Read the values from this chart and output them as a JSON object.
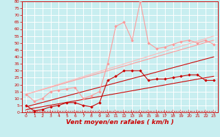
{
  "bg_color": "#c8eef0",
  "grid_color": "#ffffff",
  "xlabel": "Vent moyen/en rafales ( km/h )",
  "xlabel_color": "#cc0000",
  "xlabel_fontsize": 6.5,
  "x_tick_color": "#cc0000",
  "y_tick_color": "#cc0000",
  "xlim": [
    -0.5,
    23.5
  ],
  "ylim": [
    0,
    80
  ],
  "yticks": [
    0,
    5,
    10,
    15,
    20,
    25,
    30,
    35,
    40,
    45,
    50,
    55,
    60,
    65,
    70,
    75,
    80
  ],
  "xticks": [
    0,
    1,
    2,
    3,
    4,
    5,
    6,
    7,
    8,
    9,
    10,
    11,
    12,
    13,
    14,
    15,
    16,
    17,
    18,
    19,
    20,
    21,
    22,
    23
  ],
  "series": [
    {
      "x": [
        0,
        1,
        2,
        3,
        4,
        5,
        6,
        7,
        8,
        9,
        10,
        11,
        12,
        13,
        14,
        15,
        16,
        17,
        18,
        19,
        20,
        21,
        22,
        23
      ],
      "y": [
        5,
        1,
        2,
        4,
        5,
        7,
        7,
        5,
        4,
        7,
        23,
        26,
        30,
        30,
        30,
        23,
        24,
        24,
        25,
        26,
        27,
        27,
        23,
        23
      ],
      "color": "#cc0000",
      "linewidth": 0.8,
      "marker": "D",
      "markersize": 1.8,
      "zorder": 5
    },
    {
      "x": [
        0,
        1,
        2,
        3,
        4,
        5,
        6,
        7,
        8,
        9,
        10,
        11,
        12,
        13,
        14,
        15,
        16,
        17,
        18,
        19,
        20,
        21,
        22,
        23
      ],
      "y": [
        13,
        8,
        10,
        15,
        16,
        17,
        18,
        10,
        12,
        15,
        35,
        62,
        65,
        52,
        80,
        50,
        46,
        47,
        49,
        51,
        52,
        50,
        52,
        49
      ],
      "color": "#ff9999",
      "linewidth": 0.8,
      "marker": "D",
      "markersize": 1.8,
      "zorder": 4
    },
    {
      "x": [
        0,
        23
      ],
      "y": [
        4,
        40
      ],
      "color": "#cc0000",
      "linewidth": 0.8,
      "marker": null,
      "markersize": 0,
      "linestyle": "-",
      "zorder": 3
    },
    {
      "x": [
        0,
        23
      ],
      "y": [
        13,
        52
      ],
      "color": "#ff9999",
      "linewidth": 0.8,
      "marker": null,
      "markersize": 0,
      "linestyle": "-",
      "zorder": 2
    },
    {
      "x": [
        0,
        23
      ],
      "y": [
        2,
        26
      ],
      "color": "#cc0000",
      "linewidth": 0.8,
      "marker": null,
      "markersize": 0,
      "linestyle": "-",
      "zorder": 2
    },
    {
      "x": [
        0,
        23
      ],
      "y": [
        13,
        55
      ],
      "color": "#ffb8b8",
      "linewidth": 0.8,
      "marker": null,
      "markersize": 0,
      "linestyle": "-",
      "zorder": 2
    },
    {
      "x": [
        0,
        1,
        2,
        3,
        4,
        5,
        6,
        7,
        8,
        9,
        10,
        11,
        12,
        13,
        14,
        15,
        16,
        17,
        18,
        19,
        20,
        21,
        22,
        23
      ],
      "y": [
        1,
        1,
        1,
        1,
        1,
        1,
        1,
        1,
        1,
        1,
        1,
        1,
        1,
        1,
        1,
        1,
        1,
        1,
        1,
        1,
        1,
        1,
        1,
        1
      ],
      "color": "#cc0000",
      "linewidth": 0.5,
      "marker": "4",
      "markersize": 3.5,
      "linestyle": "--",
      "zorder": 1
    }
  ]
}
